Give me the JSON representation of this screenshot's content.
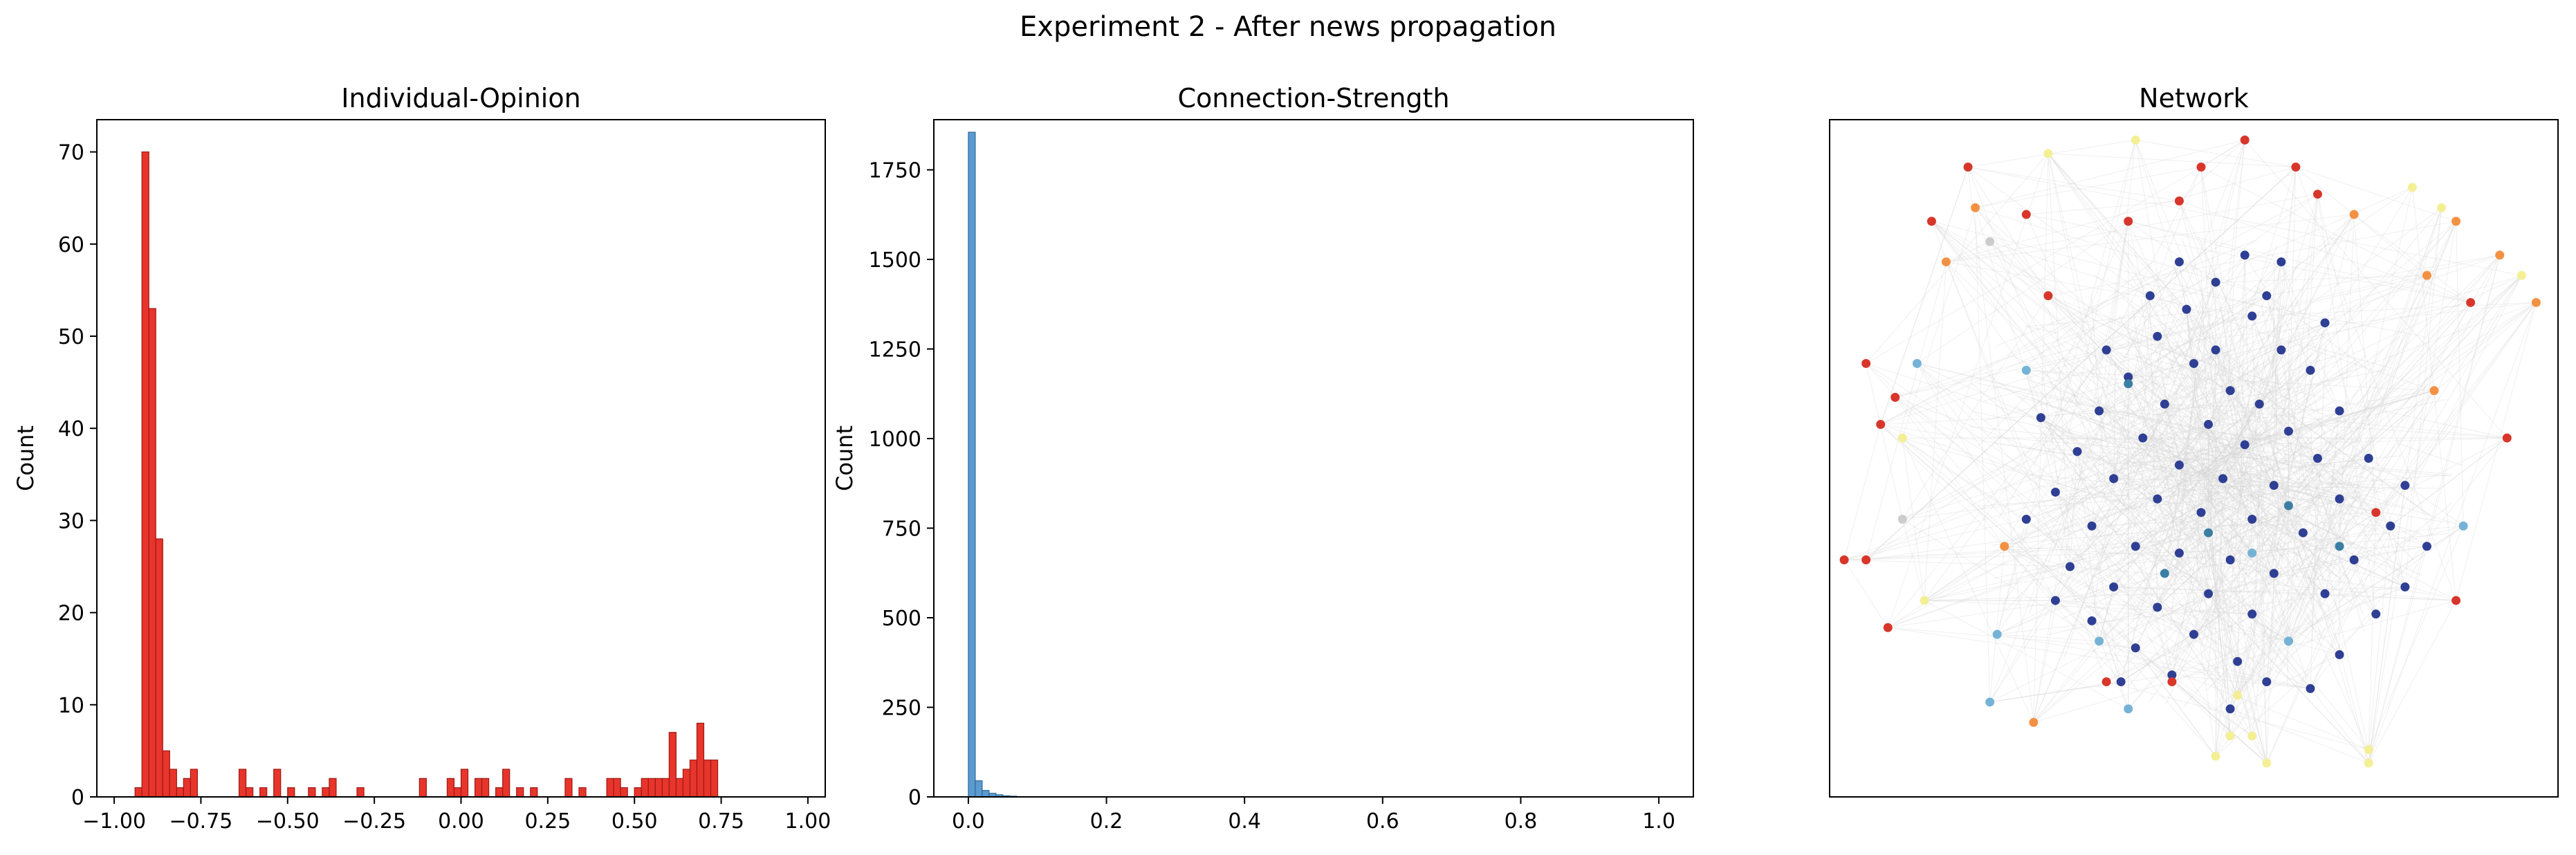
{
  "figure": {
    "suptitle": "Experiment 2 - After news propagation"
  },
  "chart_data": [
    {
      "type": "bar",
      "title": "Individual-Opinion",
      "xlabel": "",
      "ylabel": "Count",
      "xlim": [
        -1.05,
        1.05
      ],
      "ylim": [
        0,
        73.5
      ],
      "xticks": [
        -1.0,
        -0.75,
        -0.5,
        -0.25,
        0.0,
        0.25,
        0.5,
        0.75,
        1.0
      ],
      "xtick_labels": [
        "−1.00",
        "−0.75",
        "−0.50",
        "−0.25",
        "0.00",
        "0.25",
        "0.50",
        "0.75",
        "1.00"
      ],
      "yticks": [
        0,
        10,
        20,
        30,
        40,
        50,
        60,
        70
      ],
      "ytick_labels": [
        "0",
        "10",
        "20",
        "30",
        "40",
        "50",
        "60",
        "70"
      ],
      "bin_width": 0.02,
      "bin_starts": [
        -0.94,
        -0.92,
        -0.9,
        -0.88,
        -0.86,
        -0.84,
        -0.82,
        -0.8,
        -0.78,
        -0.64,
        -0.62,
        -0.58,
        -0.54,
        -0.5,
        -0.44,
        -0.4,
        -0.38,
        -0.3,
        -0.12,
        -0.04,
        -0.02,
        0.0,
        0.04,
        0.06,
        0.1,
        0.12,
        0.16,
        0.2,
        0.3,
        0.34,
        0.42,
        0.44,
        0.46,
        0.5,
        0.52,
        0.54,
        0.56,
        0.58,
        0.6,
        0.62,
        0.64,
        0.66,
        0.68,
        0.7,
        0.72
      ],
      "values": [
        1,
        70,
        53,
        28,
        5,
        3,
        1,
        2,
        3,
        3,
        1,
        1,
        3,
        1,
        1,
        1,
        2,
        1,
        2,
        2,
        1,
        3,
        2,
        2,
        1,
        3,
        1,
        1,
        2,
        1,
        2,
        2,
        1,
        1,
        2,
        2,
        2,
        2,
        7,
        2,
        3,
        4,
        8,
        4,
        4
      ],
      "color": "#e8352b",
      "edge_color": "#9c1a14"
    },
    {
      "type": "bar",
      "title": "Connection-Strength",
      "xlabel": "",
      "ylabel": "Count",
      "xlim": [
        -0.05,
        1.05
      ],
      "ylim": [
        0,
        1890
      ],
      "xticks": [
        0.0,
        0.2,
        0.4,
        0.6,
        0.8,
        1.0
      ],
      "xtick_labels": [
        "0.0",
        "0.2",
        "0.4",
        "0.6",
        "0.8",
        "1.0"
      ],
      "yticks": [
        0,
        250,
        500,
        750,
        1000,
        1250,
        1500,
        1750
      ],
      "ytick_labels": [
        "0",
        "250",
        "500",
        "750",
        "1000",
        "1250",
        "1500",
        "1750"
      ],
      "bin_width": 0.01,
      "bin_starts": [
        0.0,
        0.01,
        0.02,
        0.03,
        0.04,
        0.05,
        0.06,
        0.07
      ],
      "values": [
        1855,
        45,
        18,
        10,
        6,
        3,
        2,
        1
      ],
      "color": "#5b9bd0",
      "edge_color": "#2f6a9c"
    },
    {
      "type": "scatter",
      "title": "Network",
      "xlabel": "",
      "ylabel": "",
      "axes": "off",
      "xlim": [
        0,
        1
      ],
      "ylim": [
        0,
        1
      ],
      "node_colors": {
        "blue": "#2e3f94",
        "teal": "#3b7ea3",
        "lightblue": "#74b3d6",
        "yellow": "#f4ef95",
        "orange": "#f39143",
        "red": "#d8362b",
        "gray": "#cccccc"
      },
      "nodes": [
        {
          "x": 0.49,
          "y": 0.72,
          "c": "blue"
        },
        {
          "x": 0.53,
          "y": 0.76,
          "c": "blue"
        },
        {
          "x": 0.58,
          "y": 0.71,
          "c": "blue"
        },
        {
          "x": 0.45,
          "y": 0.68,
          "c": "blue"
        },
        {
          "x": 0.62,
          "y": 0.66,
          "c": "blue"
        },
        {
          "x": 0.41,
          "y": 0.62,
          "c": "blue"
        },
        {
          "x": 0.66,
          "y": 0.63,
          "c": "blue"
        },
        {
          "x": 0.5,
          "y": 0.64,
          "c": "blue"
        },
        {
          "x": 0.55,
          "y": 0.6,
          "c": "blue"
        },
        {
          "x": 0.59,
          "y": 0.58,
          "c": "blue"
        },
        {
          "x": 0.46,
          "y": 0.58,
          "c": "blue"
        },
        {
          "x": 0.37,
          "y": 0.57,
          "c": "blue"
        },
        {
          "x": 0.7,
          "y": 0.57,
          "c": "blue"
        },
        {
          "x": 0.52,
          "y": 0.55,
          "c": "blue"
        },
        {
          "x": 0.63,
          "y": 0.54,
          "c": "blue"
        },
        {
          "x": 0.43,
          "y": 0.53,
          "c": "blue"
        },
        {
          "x": 0.34,
          "y": 0.51,
          "c": "blue"
        },
        {
          "x": 0.57,
          "y": 0.52,
          "c": "blue"
        },
        {
          "x": 0.67,
          "y": 0.5,
          "c": "blue"
        },
        {
          "x": 0.74,
          "y": 0.5,
          "c": "blue"
        },
        {
          "x": 0.48,
          "y": 0.49,
          "c": "blue"
        },
        {
          "x": 0.39,
          "y": 0.47,
          "c": "blue"
        },
        {
          "x": 0.54,
          "y": 0.47,
          "c": "blue"
        },
        {
          "x": 0.61,
          "y": 0.46,
          "c": "blue"
        },
        {
          "x": 0.31,
          "y": 0.45,
          "c": "blue"
        },
        {
          "x": 0.45,
          "y": 0.44,
          "c": "blue"
        },
        {
          "x": 0.7,
          "y": 0.44,
          "c": "blue"
        },
        {
          "x": 0.51,
          "y": 0.42,
          "c": "blue"
        },
        {
          "x": 0.58,
          "y": 0.41,
          "c": "blue"
        },
        {
          "x": 0.36,
          "y": 0.4,
          "c": "blue"
        },
        {
          "x": 0.65,
          "y": 0.39,
          "c": "blue"
        },
        {
          "x": 0.77,
          "y": 0.4,
          "c": "blue"
        },
        {
          "x": 0.42,
          "y": 0.37,
          "c": "blue"
        },
        {
          "x": 0.48,
          "y": 0.36,
          "c": "blue"
        },
        {
          "x": 0.55,
          "y": 0.35,
          "c": "blue"
        },
        {
          "x": 0.72,
          "y": 0.35,
          "c": "blue"
        },
        {
          "x": 0.33,
          "y": 0.34,
          "c": "blue"
        },
        {
          "x": 0.61,
          "y": 0.33,
          "c": "blue"
        },
        {
          "x": 0.39,
          "y": 0.31,
          "c": "blue"
        },
        {
          "x": 0.52,
          "y": 0.3,
          "c": "blue"
        },
        {
          "x": 0.68,
          "y": 0.3,
          "c": "blue"
        },
        {
          "x": 0.45,
          "y": 0.28,
          "c": "blue"
        },
        {
          "x": 0.58,
          "y": 0.27,
          "c": "blue"
        },
        {
          "x": 0.36,
          "y": 0.26,
          "c": "blue"
        },
        {
          "x": 0.75,
          "y": 0.27,
          "c": "blue"
        },
        {
          "x": 0.5,
          "y": 0.24,
          "c": "blue"
        },
        {
          "x": 0.63,
          "y": 0.23,
          "c": "blue"
        },
        {
          "x": 0.42,
          "y": 0.22,
          "c": "blue"
        },
        {
          "x": 0.56,
          "y": 0.2,
          "c": "blue"
        },
        {
          "x": 0.7,
          "y": 0.21,
          "c": "blue"
        },
        {
          "x": 0.47,
          "y": 0.18,
          "c": "blue"
        },
        {
          "x": 0.6,
          "y": 0.17,
          "c": "blue"
        },
        {
          "x": 0.53,
          "y": 0.66,
          "c": "blue"
        },
        {
          "x": 0.44,
          "y": 0.74,
          "c": "blue"
        },
        {
          "x": 0.6,
          "y": 0.74,
          "c": "blue"
        },
        {
          "x": 0.38,
          "y": 0.66,
          "c": "blue"
        },
        {
          "x": 0.68,
          "y": 0.7,
          "c": "blue"
        },
        {
          "x": 0.29,
          "y": 0.56,
          "c": "blue"
        },
        {
          "x": 0.79,
          "y": 0.46,
          "c": "blue"
        },
        {
          "x": 0.27,
          "y": 0.41,
          "c": "blue"
        },
        {
          "x": 0.82,
          "y": 0.37,
          "c": "blue"
        },
        {
          "x": 0.31,
          "y": 0.29,
          "c": "blue"
        },
        {
          "x": 0.79,
          "y": 0.31,
          "c": "blue"
        },
        {
          "x": 0.4,
          "y": 0.17,
          "c": "blue"
        },
        {
          "x": 0.66,
          "y": 0.16,
          "c": "blue"
        },
        {
          "x": 0.55,
          "y": 0.13,
          "c": "blue"
        },
        {
          "x": 0.48,
          "y": 0.79,
          "c": "blue"
        },
        {
          "x": 0.57,
          "y": 0.8,
          "c": "blue"
        },
        {
          "x": 0.62,
          "y": 0.79,
          "c": "blue"
        },
        {
          "x": 0.52,
          "y": 0.39,
          "c": "teal"
        },
        {
          "x": 0.63,
          "y": 0.43,
          "c": "teal"
        },
        {
          "x": 0.46,
          "y": 0.33,
          "c": "teal"
        },
        {
          "x": 0.7,
          "y": 0.37,
          "c": "teal"
        },
        {
          "x": 0.41,
          "y": 0.61,
          "c": "teal"
        },
        {
          "x": 0.58,
          "y": 0.36,
          "c": "lightblue"
        },
        {
          "x": 0.27,
          "y": 0.63,
          "c": "lightblue"
        },
        {
          "x": 0.87,
          "y": 0.4,
          "c": "lightblue"
        },
        {
          "x": 0.23,
          "y": 0.24,
          "c": "lightblue"
        },
        {
          "x": 0.41,
          "y": 0.13,
          "c": "lightblue"
        },
        {
          "x": 0.12,
          "y": 0.64,
          "c": "lightblue"
        },
        {
          "x": 0.22,
          "y": 0.14,
          "c": "lightblue"
        },
        {
          "x": 0.63,
          "y": 0.23,
          "c": "lightblue"
        },
        {
          "x": 0.37,
          "y": 0.23,
          "c": "lightblue"
        },
        {
          "x": 0.3,
          "y": 0.95,
          "c": "yellow"
        },
        {
          "x": 0.42,
          "y": 0.97,
          "c": "yellow"
        },
        {
          "x": 0.84,
          "y": 0.87,
          "c": "yellow"
        },
        {
          "x": 0.1,
          "y": 0.53,
          "c": "yellow"
        },
        {
          "x": 0.13,
          "y": 0.29,
          "c": "yellow"
        },
        {
          "x": 0.56,
          "y": 0.15,
          "c": "yellow"
        },
        {
          "x": 0.55,
          "y": 0.09,
          "c": "yellow"
        },
        {
          "x": 0.58,
          "y": 0.09,
          "c": "yellow"
        },
        {
          "x": 0.6,
          "y": 0.05,
          "c": "yellow"
        },
        {
          "x": 0.53,
          "y": 0.06,
          "c": "yellow"
        },
        {
          "x": 0.74,
          "y": 0.07,
          "c": "yellow"
        },
        {
          "x": 0.74,
          "y": 0.05,
          "c": "yellow"
        },
        {
          "x": 0.95,
          "y": 0.77,
          "c": "yellow"
        },
        {
          "x": 0.8,
          "y": 0.9,
          "c": "yellow"
        },
        {
          "x": 0.22,
          "y": 0.82,
          "c": "gray"
        },
        {
          "x": 0.1,
          "y": 0.41,
          "c": "gray"
        },
        {
          "x": 0.2,
          "y": 0.87,
          "c": "orange"
        },
        {
          "x": 0.16,
          "y": 0.79,
          "c": "orange"
        },
        {
          "x": 0.72,
          "y": 0.86,
          "c": "orange"
        },
        {
          "x": 0.86,
          "y": 0.85,
          "c": "orange"
        },
        {
          "x": 0.92,
          "y": 0.8,
          "c": "orange"
        },
        {
          "x": 0.97,
          "y": 0.73,
          "c": "orange"
        },
        {
          "x": 0.83,
          "y": 0.6,
          "c": "orange"
        },
        {
          "x": 0.82,
          "y": 0.77,
          "c": "orange"
        },
        {
          "x": 0.24,
          "y": 0.37,
          "c": "orange"
        },
        {
          "x": 0.28,
          "y": 0.11,
          "c": "orange"
        },
        {
          "x": 0.05,
          "y": 0.64,
          "c": "red"
        },
        {
          "x": 0.07,
          "y": 0.55,
          "c": "red"
        },
        {
          "x": 0.05,
          "y": 0.35,
          "c": "red"
        },
        {
          "x": 0.08,
          "y": 0.25,
          "c": "red"
        },
        {
          "x": 0.27,
          "y": 0.86,
          "c": "red"
        },
        {
          "x": 0.3,
          "y": 0.74,
          "c": "red"
        },
        {
          "x": 0.41,
          "y": 0.85,
          "c": "red"
        },
        {
          "x": 0.57,
          "y": 0.97,
          "c": "red"
        },
        {
          "x": 0.64,
          "y": 0.93,
          "c": "red"
        },
        {
          "x": 0.67,
          "y": 0.89,
          "c": "red"
        },
        {
          "x": 0.48,
          "y": 0.88,
          "c": "red"
        },
        {
          "x": 0.88,
          "y": 0.73,
          "c": "red"
        },
        {
          "x": 0.93,
          "y": 0.53,
          "c": "red"
        },
        {
          "x": 0.86,
          "y": 0.29,
          "c": "red"
        },
        {
          "x": 0.47,
          "y": 0.17,
          "c": "red"
        },
        {
          "x": 0.38,
          "y": 0.17,
          "c": "red"
        },
        {
          "x": 0.19,
          "y": 0.93,
          "c": "red"
        },
        {
          "x": 0.51,
          "y": 0.93,
          "c": "red"
        },
        {
          "x": 0.14,
          "y": 0.85,
          "c": "red"
        },
        {
          "x": 0.02,
          "y": 0.35,
          "c": "red"
        },
        {
          "x": 0.09,
          "y": 0.59,
          "c": "red"
        },
        {
          "x": 0.75,
          "y": 0.42,
          "c": "red"
        }
      ]
    }
  ]
}
